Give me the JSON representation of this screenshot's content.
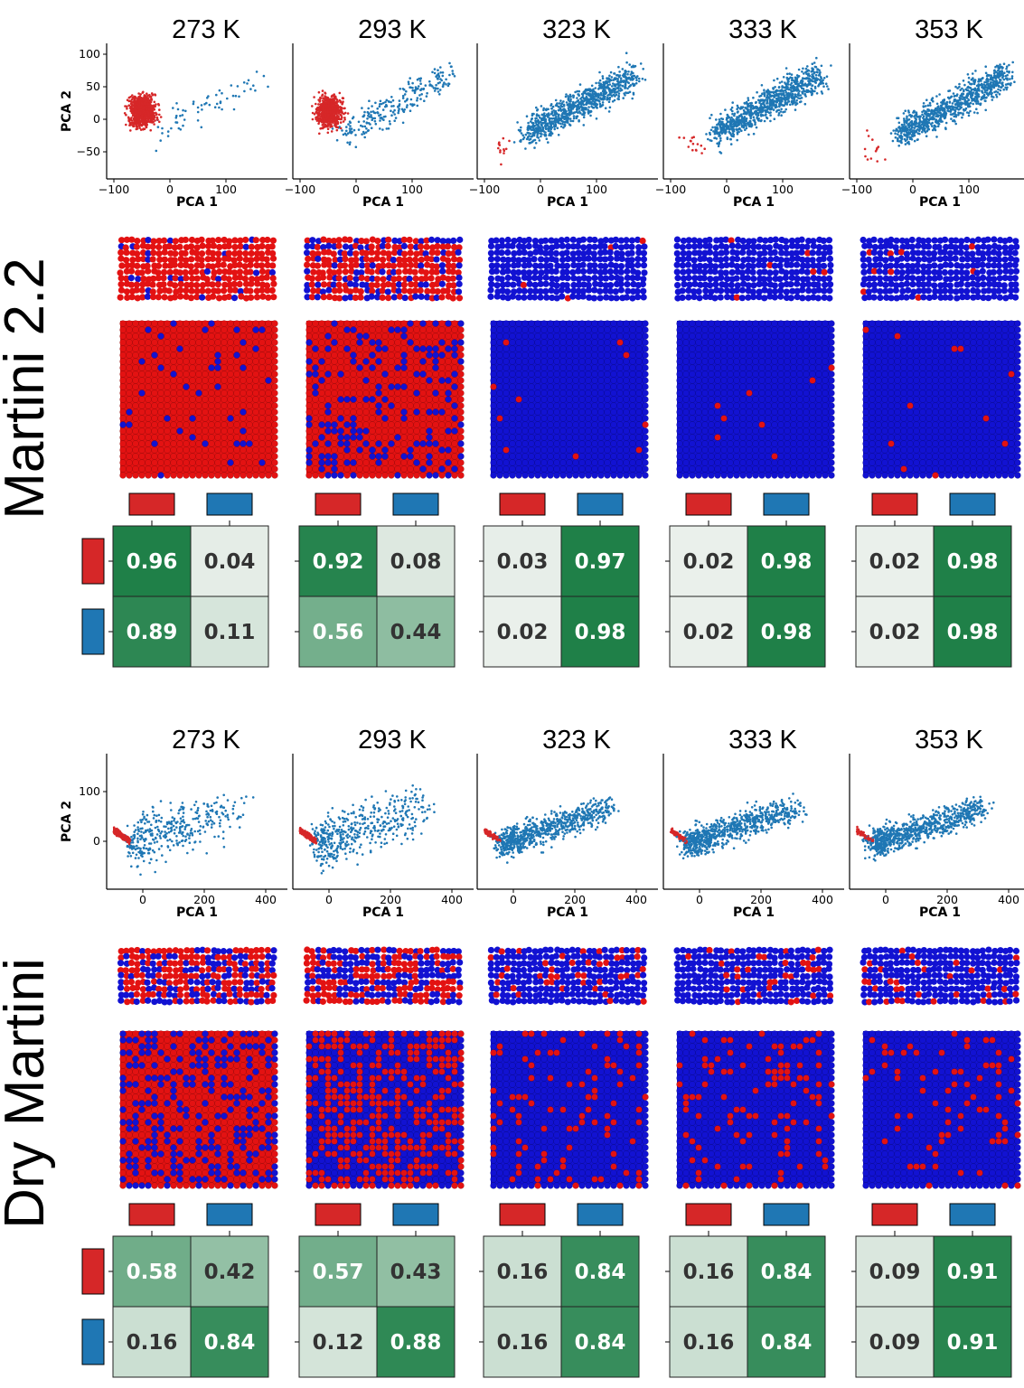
{
  "colors": {
    "red_cluster": "#d62728",
    "blue_cluster": "#1f77b4",
    "bead_red": "#e31212",
    "bead_blue": "#1212d2",
    "heat_high": "#1f8048",
    "heat_low": "#eef2ee"
  },
  "rows": [
    {
      "model": "Martini 2.2",
      "temperatures": [
        "273 K",
        "293 K",
        "323 K",
        "333 K",
        "353 K"
      ],
      "red_fraction": [
        0.93,
        0.74,
        0.015,
        0.015,
        0.015
      ],
      "y_ticks": [
        "100",
        "50",
        "0",
        "−50"
      ],
      "y_label": "PCA 2",
      "x_ticks": [
        "−100",
        "0",
        "100"
      ],
      "x_label": "PCA 1"
    },
    {
      "model": "Dry Martini",
      "temperatures": [
        "273 K",
        "293 K",
        "323 K",
        "333 K",
        "353 K"
      ],
      "red_fraction": [
        0.6,
        0.5,
        0.15,
        0.15,
        0.12
      ],
      "y_ticks": [
        "100",
        "0"
      ],
      "y_label": "PCA 2",
      "x_ticks": [
        "0",
        "200",
        "400"
      ],
      "x_label": "PCA 1"
    }
  ],
  "chart_data": [
    {
      "type": "heatmap",
      "title": "Martini 2.2",
      "rows": [
        "red",
        "blue"
      ],
      "columns": [
        "red",
        "blue"
      ],
      "panels": [
        {
          "title": "273 K",
          "values": [
            [
              0.96,
              0.04
            ],
            [
              0.89,
              0.11
            ]
          ]
        },
        {
          "title": "293 K",
          "values": [
            [
              0.92,
              0.08
            ],
            [
              0.56,
              0.44
            ]
          ]
        },
        {
          "title": "323 K",
          "values": [
            [
              0.03,
              0.97
            ],
            [
              0.02,
              0.98
            ]
          ]
        },
        {
          "title": "333 K",
          "values": [
            [
              0.02,
              0.98
            ],
            [
              0.02,
              0.98
            ]
          ]
        },
        {
          "title": "353 K",
          "values": [
            [
              0.02,
              0.98
            ],
            [
              0.02,
              0.98
            ]
          ]
        }
      ]
    },
    {
      "type": "heatmap",
      "title": "Dry Martini",
      "rows": [
        "red",
        "blue"
      ],
      "columns": [
        "red",
        "blue"
      ],
      "panels": [
        {
          "title": "273 K",
          "values": [
            [
              0.58,
              0.42
            ],
            [
              0.16,
              0.84
            ]
          ]
        },
        {
          "title": "293 K",
          "values": [
            [
              0.57,
              0.43
            ],
            [
              0.12,
              0.88
            ]
          ]
        },
        {
          "title": "323 K",
          "values": [
            [
              0.16,
              0.84
            ],
            [
              0.16,
              0.84
            ]
          ]
        },
        {
          "title": "333 K",
          "values": [
            [
              0.16,
              0.84
            ],
            [
              0.16,
              0.84
            ]
          ]
        },
        {
          "title": "353 K",
          "values": [
            [
              0.09,
              0.91
            ],
            [
              0.09,
              0.91
            ]
          ]
        }
      ]
    }
  ]
}
